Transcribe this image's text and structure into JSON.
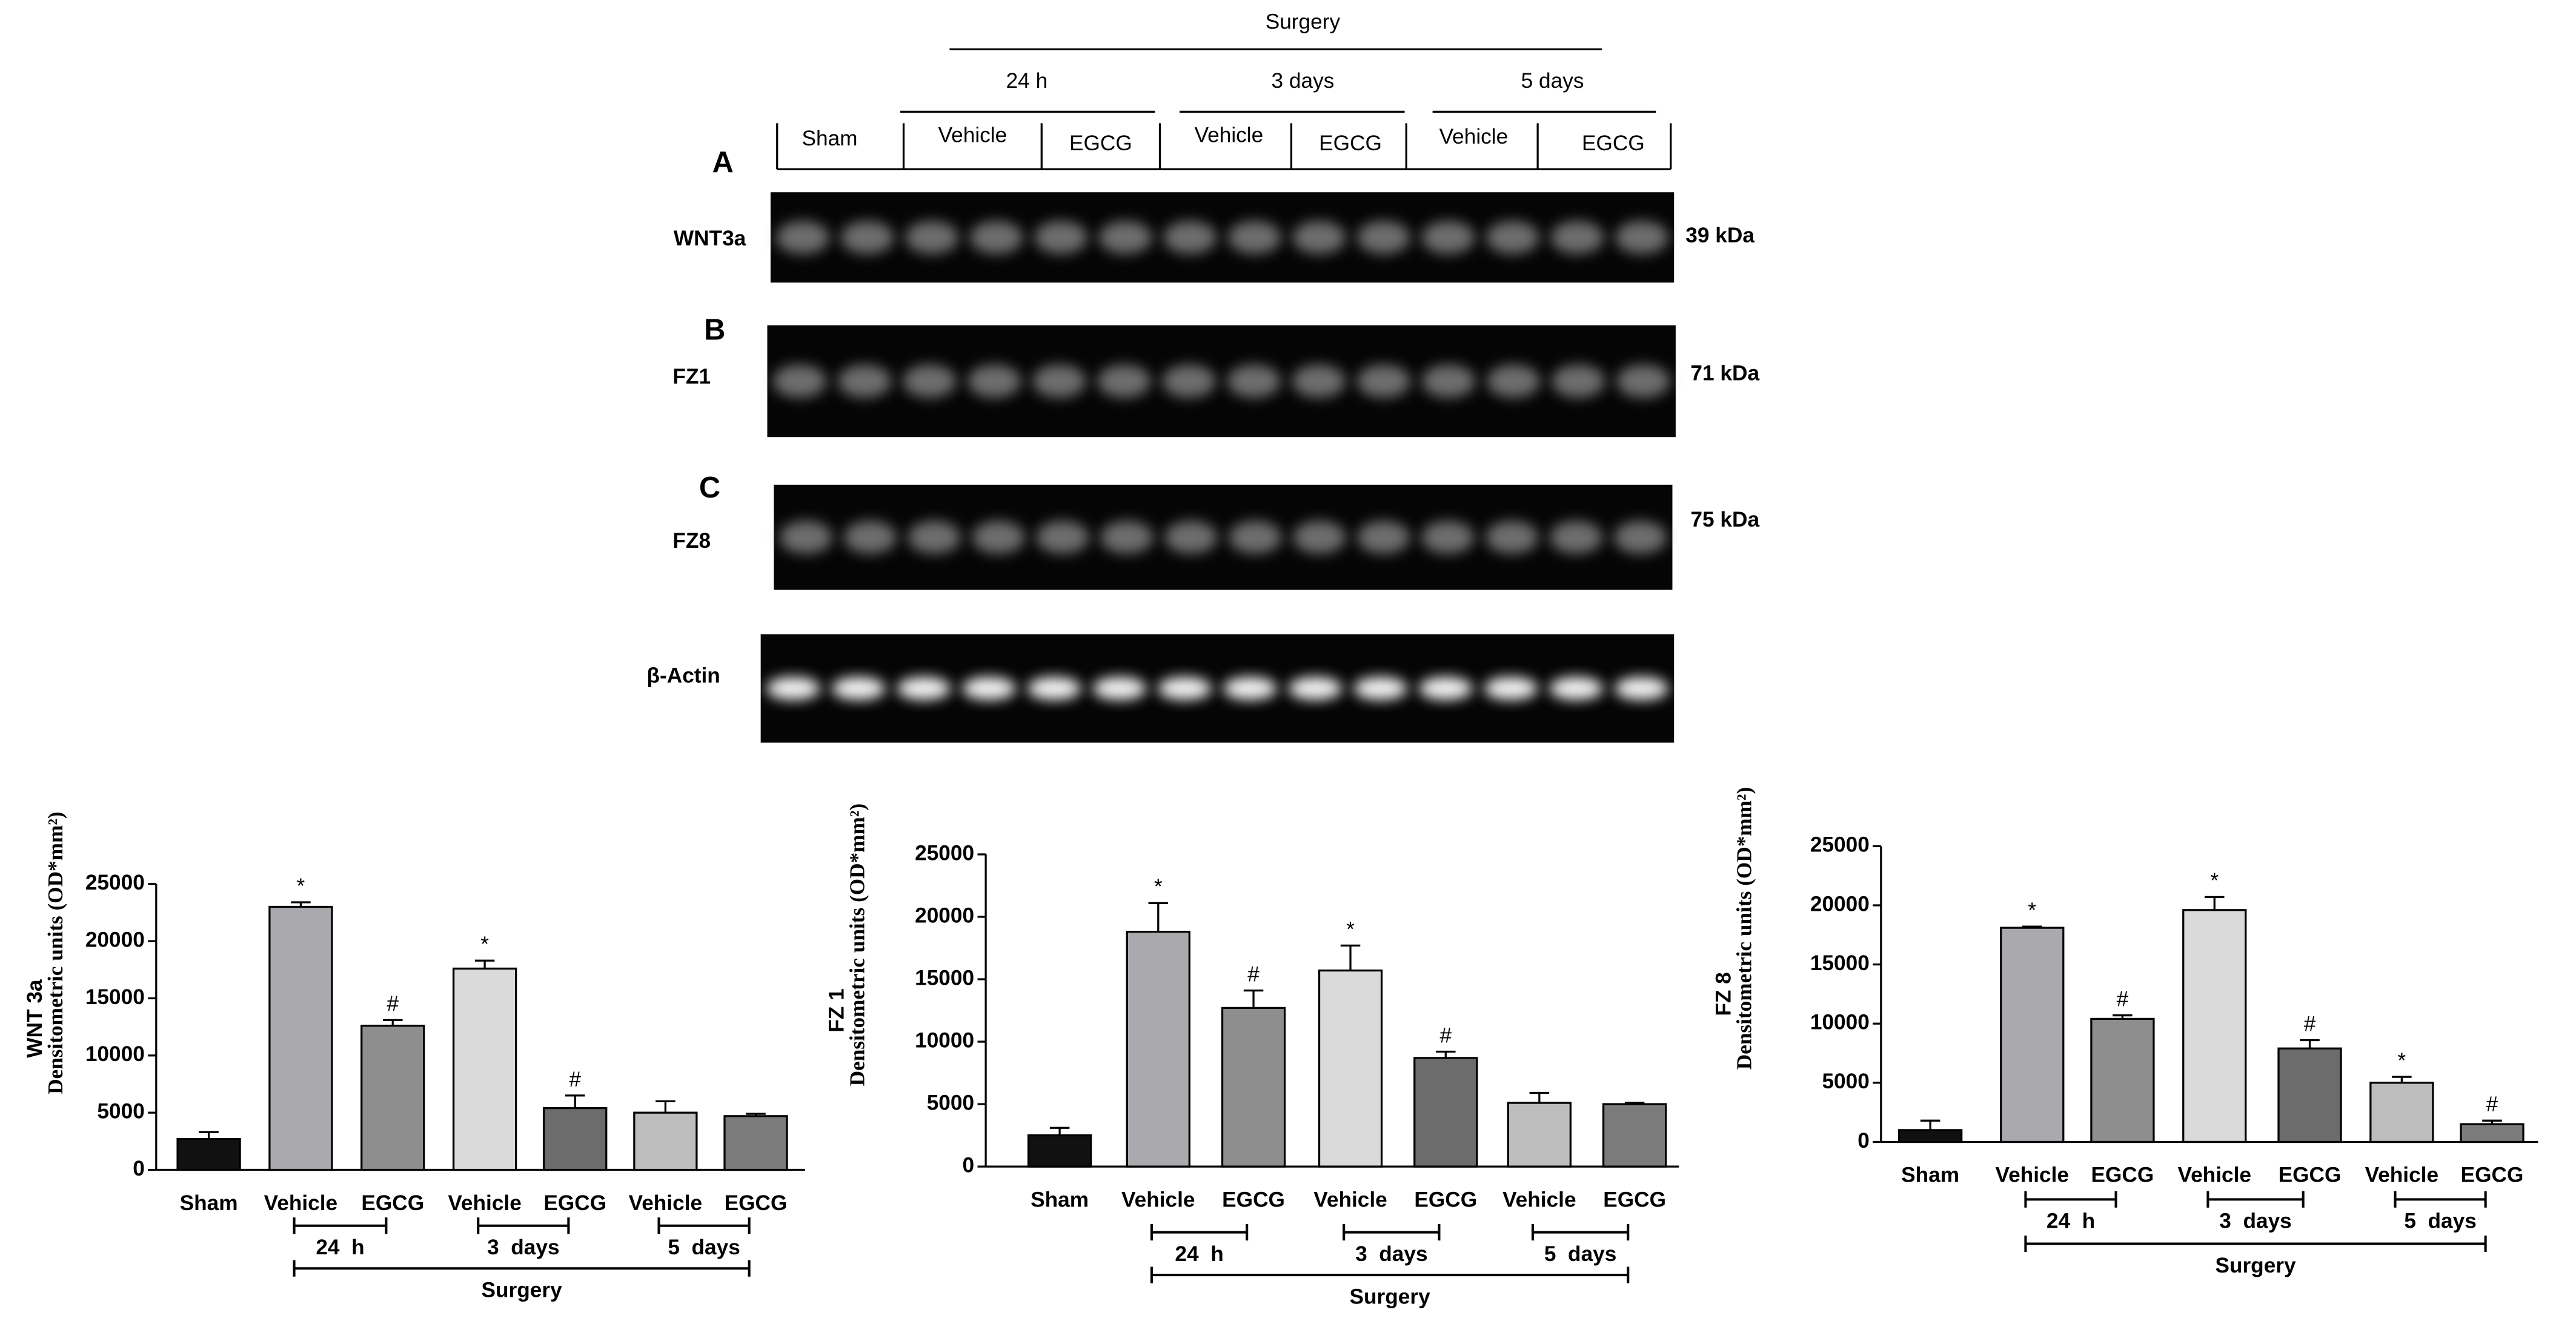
{
  "blot": {
    "surgery": "Surgery",
    "times": [
      "24 h",
      "3 days",
      "5 days"
    ],
    "lanes": [
      "Sham",
      "Vehicle",
      "EGCG",
      "Vehicle",
      "EGCG",
      "Vehicle",
      "EGCG"
    ],
    "panels": [
      {
        "letter": "A",
        "protein": "WNT3a",
        "size": "39 kDa"
      },
      {
        "letter": "B",
        "protein": "FZ1",
        "size": "71 kDa"
      },
      {
        "letter": "C",
        "protein": "FZ8",
        "size": "75 kDa"
      },
      {
        "protein": "β-Actin"
      }
    ]
  },
  "chart_data": [
    {
      "type": "bar",
      "ylabel": "WNT 3a",
      "ylabel2": "Densitometric units (OD*mm²)",
      "categories": [
        "Sham",
        "Vehicle",
        "EGCG",
        "Vehicle",
        "EGCG",
        "Vehicle",
        "EGCG"
      ],
      "values": [
        2700,
        23000,
        12600,
        17600,
        5400,
        5000,
        4700
      ],
      "errors": [
        600,
        400,
        500,
        700,
        1100,
        1000,
        200
      ],
      "markers": [
        null,
        "*",
        "#",
        "*",
        "#",
        null,
        null
      ],
      "colors": [
        "#111111",
        "#a9a9ae",
        "#8e8e8e",
        "#dadada",
        "#6c6c6c",
        "#bdbdbd",
        "#7b7b7b"
      ],
      "groups": [
        "24  h",
        "3  days",
        "5  days"
      ],
      "group_title": "Surgery",
      "ylim": [
        0,
        25000
      ],
      "yticks": [
        0,
        5000,
        10000,
        15000,
        20000,
        25000
      ]
    },
    {
      "type": "bar",
      "ylabel": "FZ 1",
      "ylabel2": "Densitometric units (OD*mm²)",
      "categories": [
        "Sham",
        "Vehicle",
        "EGCG",
        "Vehicle",
        "EGCG",
        "Vehicle",
        "EGCG"
      ],
      "values": [
        2500,
        18800,
        12700,
        15700,
        8700,
        5100,
        5000
      ],
      "errors": [
        600,
        2300,
        1400,
        2000,
        500,
        800,
        100
      ],
      "markers": [
        null,
        "*",
        "#",
        "*",
        "#",
        null,
        null
      ],
      "colors": [
        "#111111",
        "#a9a9ae",
        "#8e8e8e",
        "#dadada",
        "#6c6c6c",
        "#bdbdbd",
        "#7b7b7b"
      ],
      "groups": [
        "24  h",
        "3  days",
        "5  days"
      ],
      "group_title": "Surgery",
      "ylim": [
        0,
        25000
      ],
      "yticks": [
        0,
        5000,
        10000,
        15000,
        20000,
        25000
      ]
    },
    {
      "type": "bar",
      "ylabel": "FZ 8",
      "ylabel2": "Densitometric units (OD*mm²)",
      "categories": [
        "Sham",
        "Vehicle",
        "EGCG",
        "Vehicle",
        "EGCG",
        "Vehicle",
        "EGCG"
      ],
      "values": [
        1000,
        18100,
        10400,
        19600,
        7900,
        5000,
        1500
      ],
      "errors": [
        800,
        100,
        300,
        1100,
        700,
        500,
        300
      ],
      "markers": [
        null,
        "*",
        "#",
        "*",
        "#",
        "*",
        "#"
      ],
      "colors": [
        "#111111",
        "#a9a9ae",
        "#8e8e8e",
        "#dadada",
        "#6c6c6c",
        "#bdbdbd",
        "#7b7b7b"
      ],
      "groups": [
        "24  h",
        "3  days",
        "5  days"
      ],
      "group_title": "Surgery",
      "ylim": [
        0,
        25000
      ],
      "yticks": [
        0,
        5000,
        10000,
        15000,
        20000,
        25000
      ]
    }
  ]
}
